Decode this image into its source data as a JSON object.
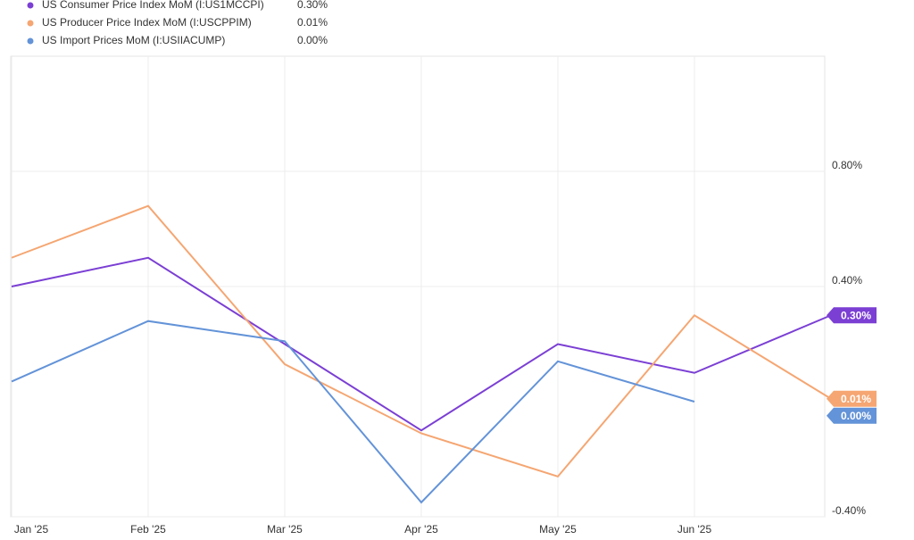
{
  "chart_data": {
    "type": "line",
    "categories": [
      "Jan '25",
      "Feb '25",
      "Mar '25",
      "Apr '25",
      "May '25",
      "Jun '25",
      null
    ],
    "series": [
      {
        "name": "US Consumer Price Index MoM (I:US1MCCPI)",
        "color": "#7b3fd4",
        "values": [
          0.4,
          0.5,
          0.2,
          -0.1,
          0.2,
          0.1,
          0.3
        ],
        "value_labels": [
          null,
          null,
          null,
          null,
          null,
          null,
          "0.30%"
        ]
      },
      {
        "name": "US Producer Price Index MoM (I:USCPPIM)",
        "color": "#f5a672",
        "values": [
          0.5,
          0.68,
          0.13,
          -0.11,
          -0.26,
          0.3,
          0.01
        ],
        "value_labels": [
          null,
          null,
          null,
          null,
          null,
          null,
          "0.01%"
        ]
      },
      {
        "name": "US Import Prices MoM (I:USIIACUMP)",
        "color": "#6393d8",
        "values": [
          0.07,
          0.28,
          0.21,
          -0.35,
          0.14,
          0.0,
          null
        ],
        "value_labels": [
          null,
          null,
          null,
          null,
          null,
          "0.00%",
          null
        ]
      }
    ],
    "ylim": [
      -0.4,
      1.2
    ],
    "yticks": [
      {
        "value": -0.4,
        "label": "-0.40%"
      },
      {
        "value": 0.4,
        "label": "0.40%"
      },
      {
        "value": 0.8,
        "label": "0.80%"
      }
    ],
    "grid": true
  }
}
